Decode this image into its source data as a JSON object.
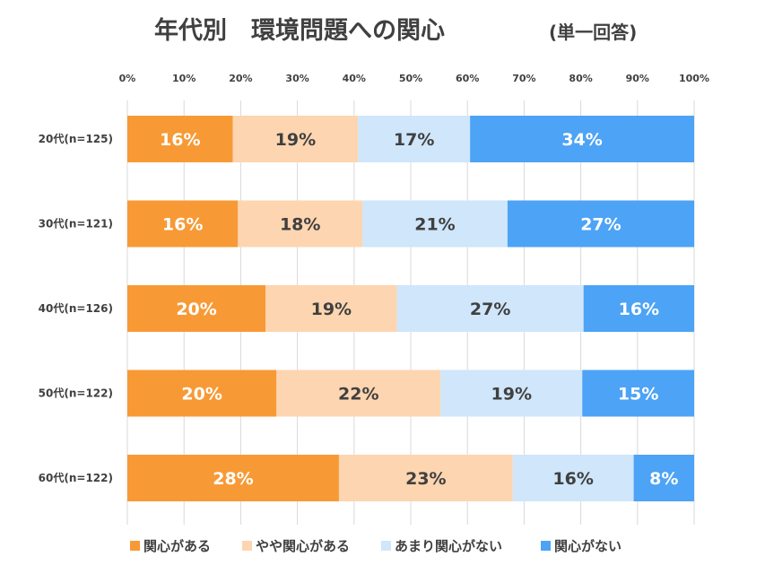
{
  "chart_data": {
    "type": "bar",
    "orientation": "horizontal",
    "stacked": true,
    "title": "年代別　環境問題への関心",
    "subtitle": "(単一回答)",
    "xlabel": "",
    "ylabel": "",
    "xlim": [
      0,
      100
    ],
    "x_ticks": [
      "0%",
      "10%",
      "20%",
      "30%",
      "40%",
      "50%",
      "60%",
      "70%",
      "80%",
      "90%",
      "100%"
    ],
    "grid": true,
    "legend_position": "bottom",
    "categories": [
      "20代(n=125)",
      "30代(n=121)",
      "40代(n=126)",
      "50代(n=122)",
      "60代(n=122)"
    ],
    "series": [
      {
        "name": "関心がある",
        "color": "#f79a36",
        "label_color": "#ffffff",
        "values": [
          16,
          16,
          20,
          20,
          28
        ],
        "labels": [
          "16%",
          "16%",
          "20%",
          "20%",
          "28%"
        ]
      },
      {
        "name": "やや関心がある",
        "color": "#fdd5b0",
        "label_color": "#404040",
        "values": [
          19,
          18,
          19,
          22,
          23
        ],
        "labels": [
          "19%",
          "18%",
          "19%",
          "22%",
          "23%"
        ]
      },
      {
        "name": "あまり関心がない",
        "color": "#cfe6fb",
        "label_color": "#404040",
        "values": [
          17,
          21,
          27,
          19,
          16
        ],
        "labels": [
          "17%",
          "21%",
          "27%",
          "19%",
          "16%"
        ]
      },
      {
        "name": "関心がない",
        "color": "#4da3f5",
        "label_color": "#ffffff",
        "values": [
          34,
          27,
          16,
          15,
          8
        ],
        "labels": [
          "34%",
          "27%",
          "16%",
          "15%",
          "8%"
        ]
      }
    ]
  }
}
